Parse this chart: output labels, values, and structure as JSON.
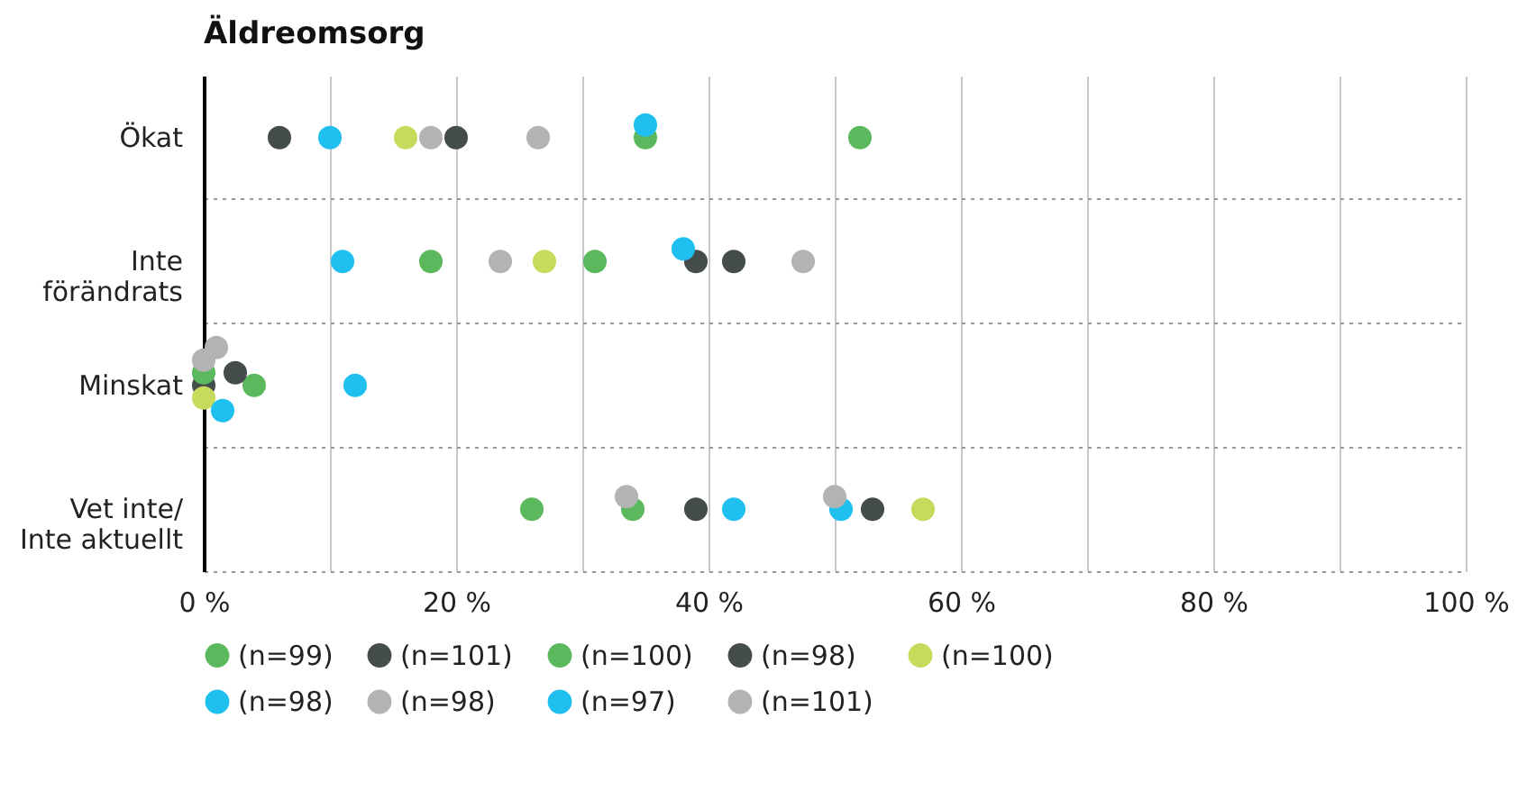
{
  "chart_data": {
    "type": "scatter",
    "title": "Äldreomsorg",
    "categories": [
      "Ökat",
      "Inte förändrats",
      "Minskat",
      "Vet inte/Inte aktuellt"
    ],
    "orientation": "horizontal",
    "xlim": [
      0,
      100
    ],
    "xticks": [
      {
        "value": 0,
        "label": "0 %"
      },
      {
        "value": 10,
        "label": null
      },
      {
        "value": 20,
        "label": "20 %"
      },
      {
        "value": 30,
        "label": null
      },
      {
        "value": 40,
        "label": "40 %"
      },
      {
        "value": 50,
        "label": null
      },
      {
        "value": 60,
        "label": "60 %"
      },
      {
        "value": 70,
        "label": null
      },
      {
        "value": 80,
        "label": "80 %"
      },
      {
        "value": 90,
        "label": null
      },
      {
        "value": 100,
        "label": "100 %"
      }
    ],
    "grid": true,
    "legend": "bottom",
    "marker": "circle",
    "series": [
      {
        "name": "(n=99)",
        "color": "#5cb85c",
        "values": [
          52,
          18,
          4,
          26
        ]
      },
      {
        "name": "(n=101)",
        "color": "#454d4c",
        "values": [
          20,
          42,
          0,
          39
        ]
      },
      {
        "name": "(n=100)",
        "color": "#5cb85c",
        "values": [
          35,
          31,
          0,
          34
        ]
      },
      {
        "name": "(n=98)",
        "color": "#454d4c",
        "values": [
          6,
          39,
          2.5,
          53
        ]
      },
      {
        "name": "(n=100)",
        "color": "#c8da5c",
        "values": [
          16,
          27,
          0,
          57
        ]
      },
      {
        "name": "(n=98)",
        "color": "#1fc0f0",
        "values": [
          35,
          11,
          12,
          42
        ]
      },
      {
        "name": "(n=98)",
        "color": "#b3b3b3",
        "values": [
          26.5,
          23.5,
          0,
          33.5
        ]
      },
      {
        "name": "(n=97)",
        "color": "#1fc0f0",
        "values": [
          10,
          38,
          1.5,
          50.5
        ]
      },
      {
        "name": "(n=101)",
        "color": "#b3b3b3",
        "values": [
          18,
          47.5,
          1,
          50
        ]
      }
    ]
  }
}
